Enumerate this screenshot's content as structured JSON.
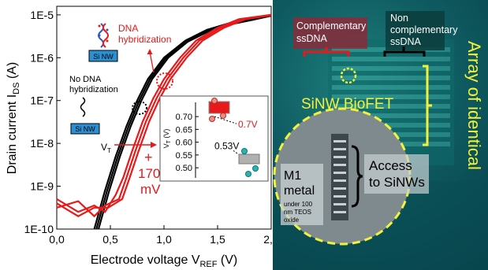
{
  "chart_data": {
    "type": "line",
    "title": "",
    "xlabel": "Electrode voltage V",
    "xlabel_sub": "REF",
    "xlabel_unit": " (V)",
    "ylabel": "Drain current I",
    "ylabel_sub": "DS",
    "ylabel_unit": " (A)",
    "xlim": [
      0,
      2
    ],
    "ylim_log10": [
      -10,
      -4.8
    ],
    "y_scale": "log",
    "grid": false,
    "x_ticks": [
      "0,0",
      "0,5",
      "1,0",
      "1,5",
      "2,0"
    ],
    "x_tick_values": [
      0,
      0.5,
      1.0,
      1.5,
      2.0
    ],
    "y_ticks": [
      "1E-10",
      "1E-9",
      "1E-8",
      "1E-7",
      "1E-6",
      "1E-5"
    ],
    "y_tick_exponents": [
      -10,
      -9,
      -8,
      -7,
      -6,
      -5
    ],
    "series": [
      {
        "group": "no-hybridization",
        "color": "#000000",
        "x": [
          0.35,
          0.45,
          0.55,
          0.65,
          0.75,
          0.85,
          1.0,
          1.2,
          1.4,
          1.6,
          1.8,
          2.0
        ],
        "y_log10": [
          -10.0,
          -9.1,
          -8.3,
          -7.6,
          -7.0,
          -6.5,
          -6.0,
          -5.6,
          -5.35,
          -5.2,
          -5.1,
          -5.0
        ]
      },
      {
        "group": "no-hybridization",
        "color": "#000000",
        "x": [
          0.37,
          0.47,
          0.57,
          0.67,
          0.77,
          0.87,
          1.02,
          1.2,
          1.4,
          1.6,
          1.8,
          2.0
        ],
        "y_log10": [
          -10.0,
          -9.1,
          -8.3,
          -7.6,
          -7.0,
          -6.5,
          -6.0,
          -5.62,
          -5.37,
          -5.21,
          -5.11,
          -5.01
        ]
      },
      {
        "group": "no-hybridization",
        "color": "#000000",
        "x": [
          0.39,
          0.49,
          0.59,
          0.69,
          0.79,
          0.89,
          1.04,
          1.22,
          1.42,
          1.62,
          1.82,
          2.0
        ],
        "y_log10": [
          -10.0,
          -9.1,
          -8.3,
          -7.6,
          -7.0,
          -6.5,
          -6.0,
          -5.63,
          -5.38,
          -5.22,
          -5.12,
          -5.02
        ]
      },
      {
        "group": "dna-hybridization",
        "color": "#e8191a",
        "x": [
          0.0,
          0.2,
          0.35,
          0.45,
          0.55,
          0.62,
          0.7,
          0.8,
          0.9,
          1.0,
          1.15,
          1.3,
          1.5,
          1.7,
          2.0
        ],
        "y_log10": [
          -9.3,
          -9.6,
          -9.45,
          -9.6,
          -9.2,
          -8.8,
          -8.2,
          -7.5,
          -6.95,
          -6.5,
          -6.0,
          -5.6,
          -5.3,
          -5.1,
          -5.0
        ]
      },
      {
        "group": "dna-hybridization",
        "color": "#e8191a",
        "x": [
          0.0,
          0.2,
          0.35,
          0.45,
          0.58,
          0.65,
          0.73,
          0.83,
          0.93,
          1.03,
          1.18,
          1.33,
          1.53,
          1.73,
          2.0
        ],
        "y_log10": [
          -9.5,
          -9.35,
          -9.7,
          -9.45,
          -9.3,
          -8.8,
          -8.2,
          -7.5,
          -6.95,
          -6.5,
          -6.0,
          -5.6,
          -5.3,
          -5.1,
          -5.0
        ]
      },
      {
        "group": "dna-hybridization",
        "color": "#e8191a",
        "x": [
          0.0,
          0.2,
          0.35,
          0.48,
          0.61,
          0.68,
          0.76,
          0.86,
          0.96,
          1.06,
          1.21,
          1.36,
          1.56,
          1.76,
          2.0
        ],
        "y_log10": [
          -9.4,
          -9.7,
          -9.5,
          -9.5,
          -9.3,
          -8.8,
          -8.2,
          -7.5,
          -6.95,
          -6.5,
          -6.0,
          -5.6,
          -5.3,
          -5.1,
          -5.01
        ]
      }
    ],
    "annotations": {
      "dna_hybridization": "DNA hybridization",
      "no_dna_hybridization": "No DNA hybridization",
      "si_nw": "Si NW",
      "vt_main": "V",
      "vt_sub": "T",
      "shift_plus": "+",
      "shift_value": "170",
      "shift_unit": "mV"
    },
    "inset": {
      "type": "scatter",
      "ylabel": "V",
      "ylabel_sub": "T",
      "ylabel_unit": " (V)",
      "y_ticks": [
        "0.70",
        "0.65",
        "0.60",
        "0.55",
        "0.50"
      ],
      "y_tick_values": [
        0.7,
        0.65,
        0.6,
        0.55,
        0.5
      ],
      "ylim": [
        0.485,
        0.725
      ],
      "points": [
        {
          "label": "0.7V",
          "value": 0.7,
          "color": "#e8191a"
        },
        {
          "label": "0.53V",
          "value": 0.53,
          "color": "#000000"
        }
      ]
    }
  },
  "photo": {
    "labels": {
      "complementary": "Complementary ssDNA",
      "non_complementary": "Non complementary ssDNA",
      "array": "Array of identical BioFETs",
      "sinw_biofet": "SiNW BioFET",
      "m1": "M1",
      "metal": "metal",
      "oxide": "under 100 nm TEOS oxide",
      "access": "Access to SiNWs"
    },
    "colors": {
      "yellow": "#f2f23a",
      "red": "#e8191a",
      "green": "#7de04a"
    }
  }
}
